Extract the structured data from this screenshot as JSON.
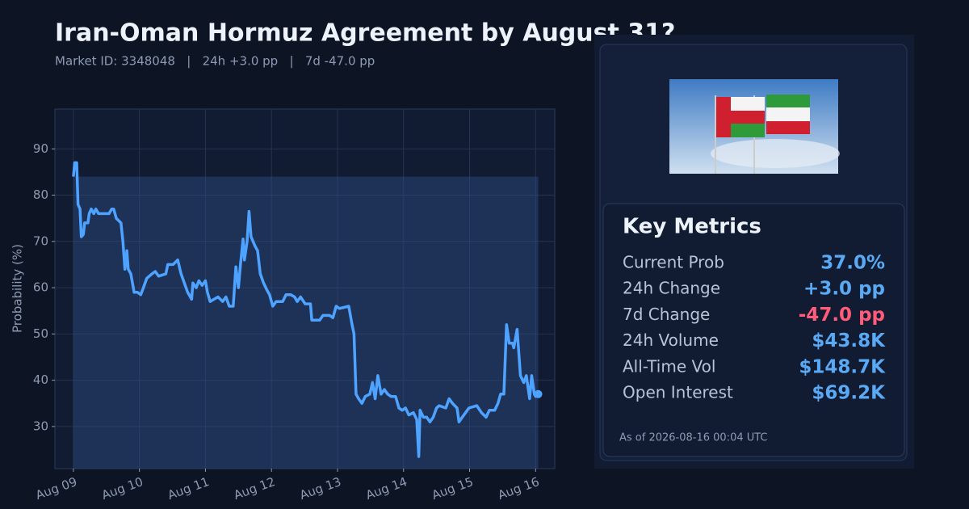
{
  "header": {
    "title": "Iran-Oman Hormuz Agreement by August 31?",
    "subtitle": "Market ID: 3348048   |   24h +3.0 pp   |   7d -47.0 pp"
  },
  "chart_data": {
    "type": "line",
    "ylabel": "Probability (%)",
    "color": "#4da3ff",
    "grid": true,
    "band_top": 84,
    "xlim": [
      -0.28,
      7.29
    ],
    "ylim": [
      20.9,
      98.6
    ],
    "xticks": [
      {
        "value": 0,
        "label": "Aug 09"
      },
      {
        "value": 1,
        "label": "Aug 10"
      },
      {
        "value": 2,
        "label": "Aug 11"
      },
      {
        "value": 3,
        "label": "Aug 12"
      },
      {
        "value": 4,
        "label": "Aug 13"
      },
      {
        "value": 5,
        "label": "Aug 14"
      },
      {
        "value": 6,
        "label": "Aug 15"
      },
      {
        "value": 7,
        "label": "Aug 16"
      }
    ],
    "yticks": [
      30,
      40,
      50,
      60,
      70,
      80,
      90
    ],
    "x": [
      0,
      0.02,
      0.05,
      0.07,
      0.1,
      0.12,
      0.15,
      0.17,
      0.22,
      0.24,
      0.27,
      0.31,
      0.34,
      0.38,
      0.54,
      0.58,
      0.61,
      0.65,
      0.72,
      0.75,
      0.78,
      0.81,
      0.83,
      0.87,
      0.92,
      0.97,
      1.02,
      1.06,
      1.11,
      1.19,
      1.24,
      1.29,
      1.4,
      1.43,
      1.51,
      1.58,
      1.63,
      1.68,
      1.73,
      1.79,
      1.81,
      1.86,
      1.9,
      1.95,
      2.0,
      2.03,
      2.07,
      2.13,
      2.19,
      2.26,
      2.31,
      2.36,
      2.42,
      2.46,
      2.5,
      2.53,
      2.57,
      2.59,
      2.63,
      2.66,
      2.69,
      2.75,
      2.79,
      2.83,
      2.88,
      2.93,
      2.97,
      3.02,
      3.07,
      3.17,
      3.22,
      3.29,
      3.35,
      3.39,
      3.44,
      3.51,
      3.59,
      3.61,
      3.73,
      3.78,
      3.88,
      3.93,
      3.98,
      4.03,
      4.17,
      4.22,
      4.25,
      4.28,
      4.32,
      4.37,
      4.42,
      4.49,
      4.53,
      4.57,
      4.61,
      4.66,
      4.71,
      4.76,
      4.81,
      4.88,
      4.93,
      4.98,
      5.03,
      5.08,
      5.15,
      5.2,
      5.23,
      5.25,
      5.3,
      5.35,
      5.4,
      5.45,
      5.5,
      5.54,
      5.64,
      5.69,
      5.74,
      5.81,
      5.84,
      5.89,
      5.94,
      5.99,
      6.11,
      6.18,
      6.25,
      6.3,
      6.38,
      6.43,
      6.47,
      6.52,
      6.56,
      6.6,
      6.65,
      6.67,
      6.72,
      6.77,
      6.82,
      6.86,
      6.91,
      6.94,
      6.98,
      7.0,
      7.04
    ],
    "values": [
      84,
      87,
      87,
      78,
      77,
      71,
      71.5,
      74,
      74,
      76,
      77,
      76,
      77,
      76,
      76,
      77,
      77,
      75,
      74,
      70,
      64,
      68,
      64,
      63,
      59,
      59,
      58.5,
      60,
      62,
      63,
      63.5,
      62.5,
      63,
      65,
      65,
      66,
      63,
      61,
      59,
      57.5,
      61,
      60,
      61.5,
      60.5,
      61.5,
      59,
      57,
      57.5,
      58,
      57,
      58,
      56,
      56,
      64.5,
      60,
      65,
      70.5,
      66,
      70,
      76.5,
      71,
      69,
      68,
      63,
      61,
      59.5,
      58.5,
      56,
      57,
      57,
      58.5,
      58.5,
      58,
      57,
      58,
      56.5,
      56.5,
      53,
      53,
      54,
      54,
      53.5,
      56,
      55.5,
      56,
      52,
      50,
      37,
      36,
      35,
      36.5,
      37,
      39.5,
      36,
      41,
      37,
      38,
      37,
      36.5,
      36.5,
      34,
      33.5,
      34,
      32.5,
      33,
      31.5,
      23.5,
      33.5,
      32,
      32,
      31,
      32,
      34,
      34.5,
      34,
      36,
      35,
      34,
      31,
      32,
      33,
      34,
      34.5,
      33,
      32,
      33.5,
      33.5,
      35,
      37,
      37,
      52,
      48,
      48,
      47,
      51,
      41,
      39.5,
      41,
      36,
      41,
      37,
      36.5,
      37
    ]
  },
  "metrics": {
    "title": "Key Metrics",
    "rows": [
      {
        "label": "Current Prob",
        "value": "37.0%",
        "color": "#5aa9f5"
      },
      {
        "label": "24h Change",
        "value": "+3.0 pp",
        "color": "#5aa9f5"
      },
      {
        "label": "7d Change",
        "value": "-47.0 pp",
        "color": "#ff5c7a"
      },
      {
        "label": "24h Volume",
        "value": "$43.8K",
        "color": "#5aa9f5"
      },
      {
        "label": "All-Time Vol",
        "value": "$148.7K",
        "color": "#5aa9f5"
      },
      {
        "label": "Open Interest",
        "value": "$69.2K",
        "color": "#5aa9f5"
      }
    ],
    "footer": "As of 2026-08-16 00:04 UTC"
  }
}
